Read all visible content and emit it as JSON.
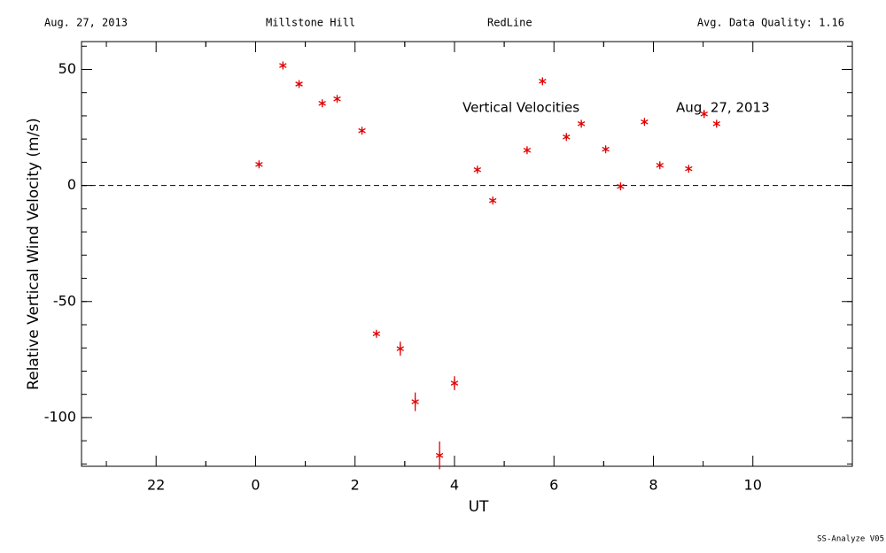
{
  "chart_data": {
    "type": "scatter",
    "header": [
      "Aug. 27, 2013",
      "Millstone Hill",
      "RedLine",
      "Avg. Data Quality: 1.16"
    ],
    "annotations": [
      "Vertical Velocities",
      "Aug. 27, 2013"
    ],
    "footer": "SS-Analyze V05",
    "x_label": "UT",
    "y_label": "Relative Vertical Wind Velocity (m/s)",
    "xlim": [
      -3.5,
      12
    ],
    "ylim": [
      -121,
      62
    ],
    "xticks": [
      {
        "value": -2,
        "label": "22"
      },
      0,
      2,
      4,
      6,
      8,
      10
    ],
    "yticks": [
      -100,
      -50,
      0,
      50
    ],
    "reference_line": 0,
    "series": [
      {
        "color": "#e00000",
        "x": [
          0.07,
          0.55,
          0.875,
          1.34,
          1.64,
          2.14,
          2.43,
          2.91,
          3.21,
          3.7,
          4.0,
          4.46,
          4.77,
          5.46,
          5.77,
          6.25,
          6.55,
          7.04,
          7.34,
          7.82,
          8.13,
          8.71,
          9.02,
          9.27
        ],
        "values": [
          9.1,
          51.7,
          43.7,
          35.4,
          37.3,
          23.6,
          -63.9,
          -70.3,
          -93.2,
          -116.3,
          -85.2,
          6.8,
          -6.5,
          15.2,
          44.9,
          20.9,
          26.6,
          15.6,
          -0.4,
          27.4,
          8.7,
          7.2,
          30.8,
          26.6
        ],
        "errors": [
          1,
          1,
          1,
          1,
          1,
          1,
          1,
          3,
          4,
          6,
          3,
          1,
          1,
          1,
          1,
          1,
          1,
          1,
          1,
          1,
          1,
          1,
          1,
          1
        ]
      }
    ]
  }
}
